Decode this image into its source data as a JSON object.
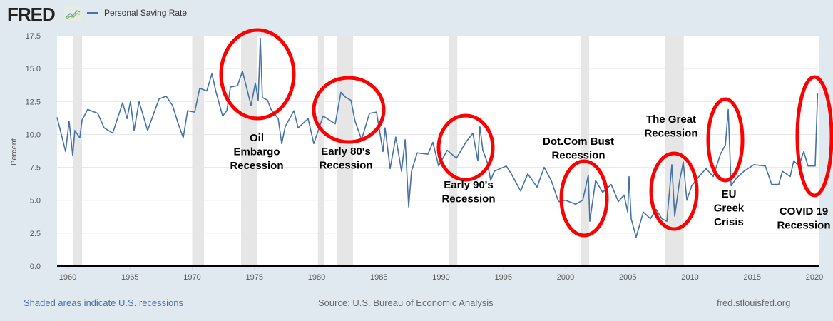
{
  "header": {
    "logo": "FRED",
    "legend": "Personal Saving Rate"
  },
  "footer": {
    "note": "Shaded areas indicate U.S. recessions",
    "source": "Source: U.S. Bureau of Economic Analysis",
    "url": "fred.stlouisfed.org"
  },
  "colors": {
    "line": "#4572a7",
    "recession": "#e6e6e6",
    "annotation": "#ff0000",
    "background": "#e1e9f0"
  },
  "chart_data": {
    "type": "line",
    "title": "Personal Saving Rate",
    "xlabel": "",
    "ylabel": "Percent",
    "xlim": [
      1959.14,
      2020.34
    ],
    "ylim": [
      0,
      17.5
    ],
    "grid": true,
    "legend": "top-left",
    "x_ticks": [
      "1960",
      "1965",
      "1970",
      "1975",
      "1980",
      "1985",
      "1990",
      "1995",
      "2000",
      "2005",
      "2010",
      "2015",
      "2020"
    ],
    "y_ticks": [
      "0.0",
      "2.5",
      "5.0",
      "7.5",
      "10.0",
      "12.5",
      "15.0",
      "17.5"
    ],
    "recessions": [
      [
        1960.4,
        1961.15
      ],
      [
        1970.0,
        1970.95
      ],
      [
        1973.93,
        1975.19
      ],
      [
        1980.1,
        1980.6
      ],
      [
        1981.6,
        1982.92
      ],
      [
        1990.6,
        1991.3
      ],
      [
        2001.25,
        2001.9
      ],
      [
        2008.0,
        2009.5
      ]
    ],
    "series": [
      {
        "name": "Personal Saving Rate",
        "x": [
          1959.14,
          1959.83,
          1960.11,
          1960.4,
          1960.57,
          1960.97,
          1961.15,
          1961.6,
          1962.41,
          1962.92,
          1963.61,
          1964.41,
          1964.76,
          1965.04,
          1965.33,
          1965.73,
          1966.42,
          1966.99,
          1967.34,
          1967.91,
          1968.42,
          1968.88,
          1969.28,
          1969.63,
          1970.2,
          1970.6,
          1971.17,
          1971.58,
          1971.92,
          1972.44,
          1972.78,
          1973.07,
          1973.64,
          1974.04,
          1974.73,
          1975.07,
          1975.3,
          1975.47,
          1975.64,
          1976.05,
          1976.33,
          1976.91,
          1977.19,
          1977.48,
          1978.17,
          1978.51,
          1979.31,
          1979.77,
          1980.52,
          1981.49,
          1981.95,
          1982.35,
          1982.75,
          1983.09,
          1983.61,
          1984.24,
          1984.81,
          1985.33,
          1985.5,
          1985.9,
          1986.36,
          1986.82,
          1987.11,
          1987.39,
          1987.62,
          1988.08,
          1988.94,
          1989.34,
          1989.8,
          1990.49,
          1991.23,
          1991.98,
          1992.55,
          1992.95,
          1993.12,
          1993.35,
          1993.7,
          1993.98,
          1994.27,
          1995.24,
          1995.64,
          1996.39,
          1996.96,
          1997.71,
          1998.28,
          1998.85,
          1999.43,
          2000.0,
          2000.8,
          2001.38,
          2001.83,
          2001.95,
          2002.41,
          2002.98,
          2003.67,
          2004.24,
          2004.7,
          2004.99,
          2005.1,
          2005.27,
          2005.67,
          2006.25,
          2006.82,
          2007.28,
          2007.74,
          2008.14,
          2008.54,
          2008.77,
          2009.17,
          2009.46,
          2009.74,
          2010.14,
          2010.72,
          2011.29,
          2011.86,
          2012.44,
          2012.84,
          2013.07,
          2013.3,
          2013.75,
          2014.33,
          2015.13,
          2016.05,
          2016.56,
          2017.13,
          2017.42,
          2018.05,
          2018.34,
          2018.74,
          2019.14,
          2019.48,
          2020.06,
          2020.25
        ],
        "y": [
          11.3,
          8.7,
          11.0,
          8.4,
          10.3,
          9.75,
          11.1,
          11.9,
          11.6,
          10.5,
          10.1,
          12.4,
          11.2,
          12.5,
          10.3,
          12.5,
          10.3,
          11.8,
          12.7,
          12.9,
          12.2,
          10.8,
          9.75,
          11.8,
          11.7,
          13.5,
          13.3,
          14.6,
          13.2,
          11.4,
          11.8,
          13.6,
          13.7,
          14.8,
          12.2,
          13.9,
          12.6,
          17.3,
          12.8,
          12.6,
          11.9,
          11.2,
          9.3,
          10.6,
          11.8,
          10.5,
          11.2,
          9.3,
          11.4,
          10.8,
          13.2,
          12.8,
          12.6,
          11.0,
          9.6,
          11.6,
          11.7,
          8.7,
          10.5,
          7.4,
          9.8,
          7.2,
          9.6,
          4.5,
          7.2,
          8.6,
          8.5,
          9.4,
          7.6,
          8.8,
          8.2,
          9.4,
          10.1,
          8.0,
          10.6,
          8.8,
          7.9,
          6.5,
          7.2,
          7.6,
          7.0,
          5.7,
          7.0,
          6.0,
          7.5,
          6.5,
          4.9,
          5.0,
          4.7,
          5.0,
          6.9,
          3.4,
          6.5,
          5.6,
          6.2,
          4.9,
          5.4,
          4.1,
          6.8,
          3.6,
          2.2,
          4.1,
          3.6,
          4.3,
          3.6,
          3.4,
          7.7,
          3.8,
          6.5,
          7.9,
          5.0,
          6.1,
          6.8,
          7.4,
          6.8,
          8.5,
          9.2,
          11.9,
          6.1,
          6.7,
          7.2,
          7.7,
          7.6,
          6.2,
          6.2,
          7.2,
          6.8,
          8.0,
          7.6,
          8.7,
          7.6,
          7.6,
          13.1
        ]
      }
    ],
    "annotations": [
      {
        "lines": [
          "Oil",
          "Embargo",
          "Recession"
        ]
      },
      {
        "lines": [
          "Early 80's",
          "Recession"
        ]
      },
      {
        "lines": [
          "Early 90's",
          "Recession"
        ]
      },
      {
        "lines": [
          "Dot.Com Bust",
          "Recession"
        ]
      },
      {
        "lines": [
          "The Great",
          "Recession"
        ]
      },
      {
        "lines": [
          "EU",
          "Greek",
          "Crisis"
        ]
      },
      {
        "lines": [
          "COVID 19",
          "Recession"
        ]
      }
    ]
  }
}
